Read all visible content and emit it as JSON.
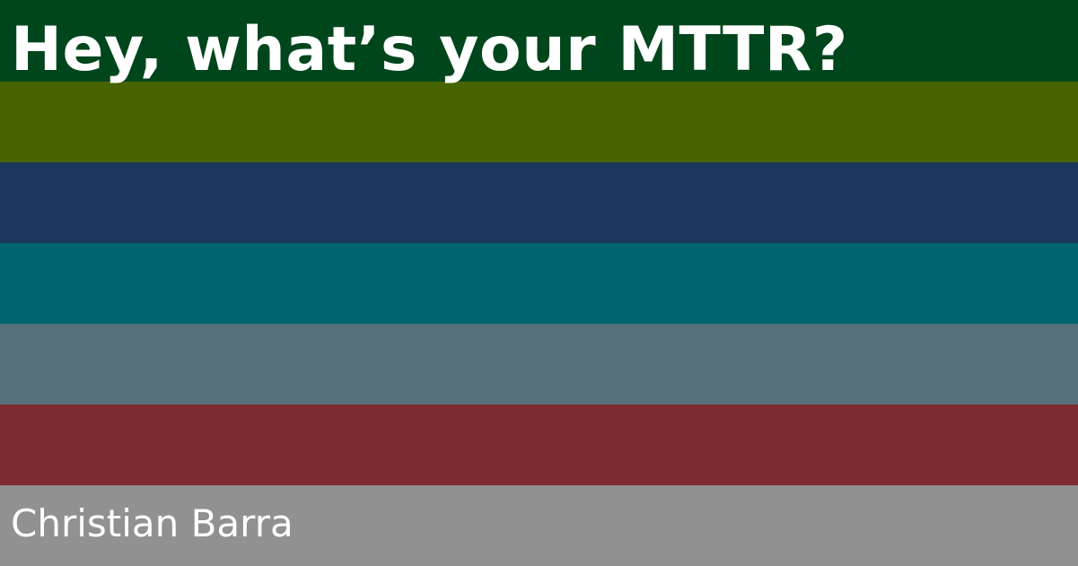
{
  "title": "Hey, what’s your MTTR?",
  "author": "Christian Barra",
  "stripe_colors": [
    "#00461c",
    "#476400",
    "#1c375e",
    "#00646e",
    "#557079",
    "#7d2a30",
    "#919191"
  ]
}
